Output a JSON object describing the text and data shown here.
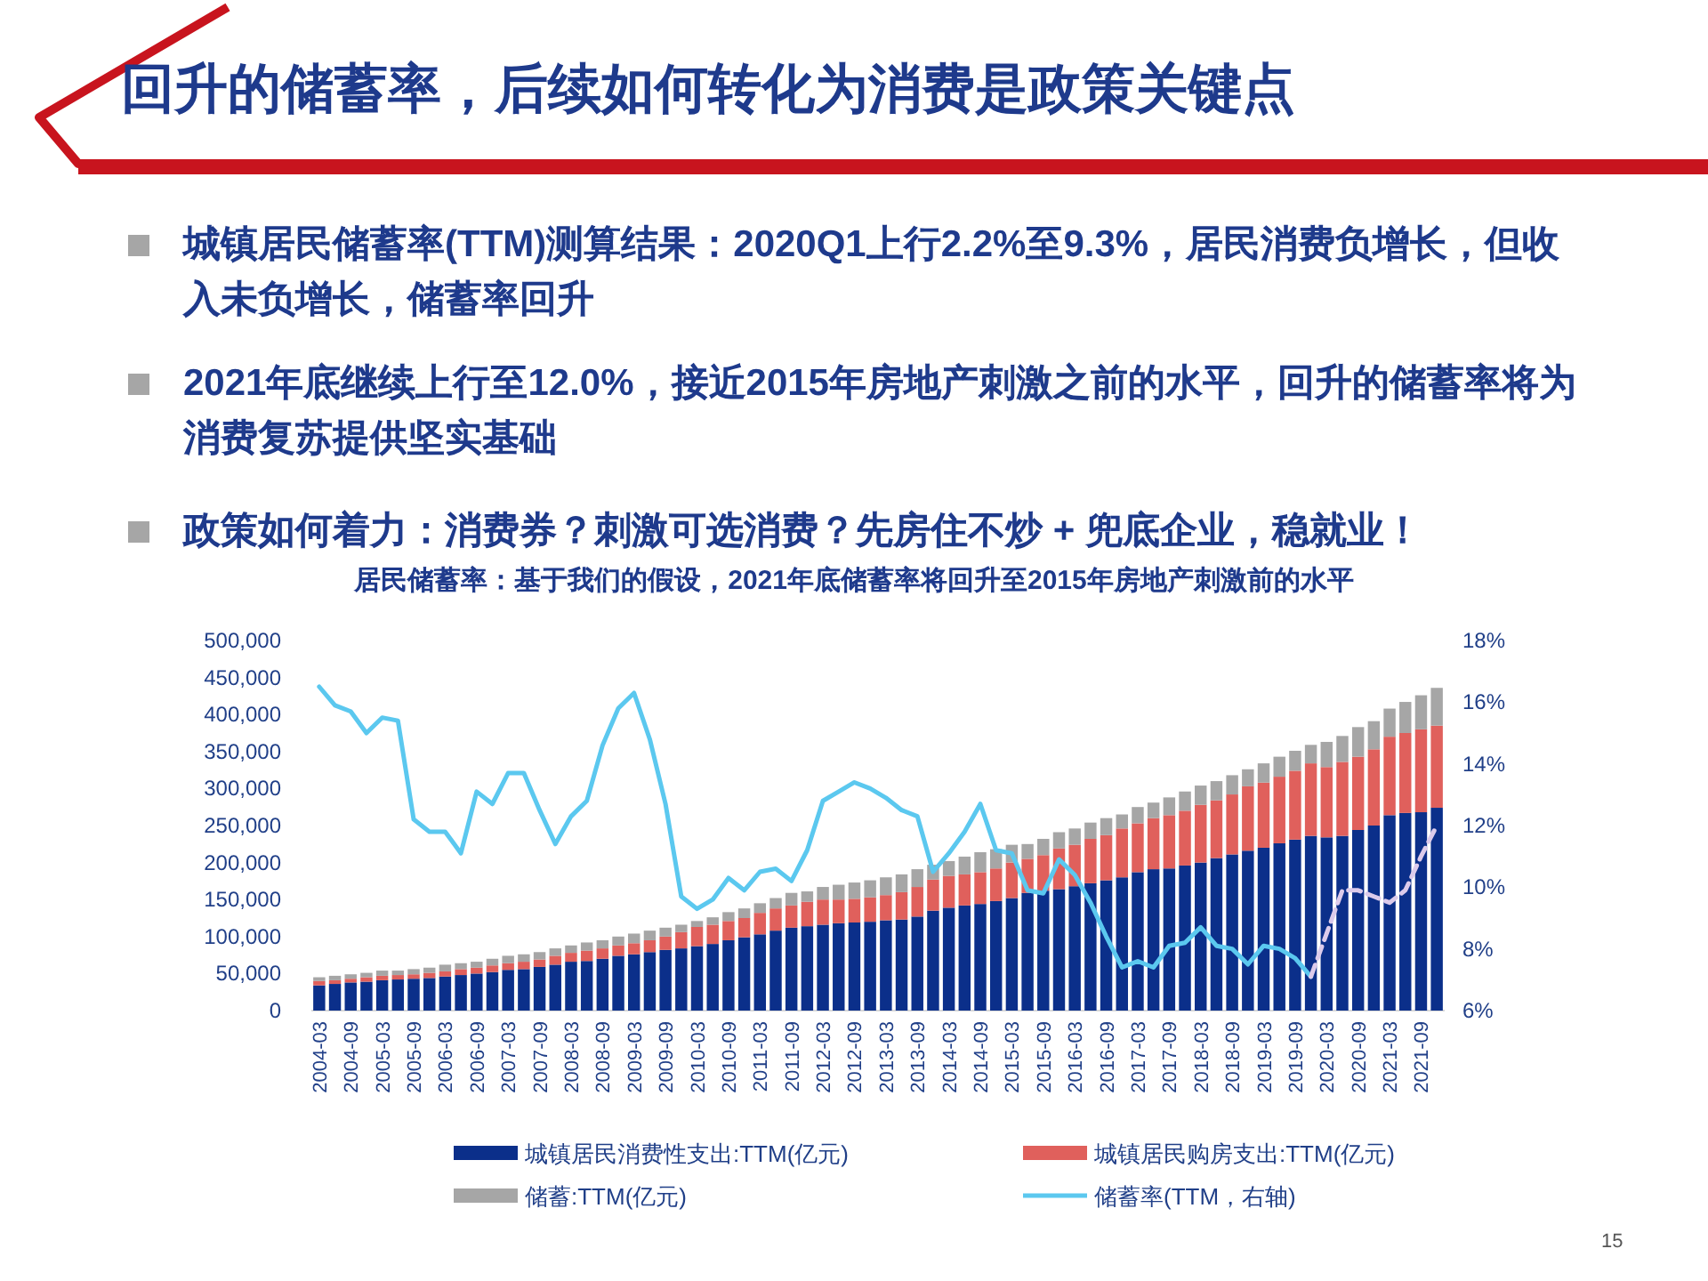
{
  "chart_data": {
    "type": "bar",
    "title": "回升的储蓄率，后续如何转化为消费是政策关键点",
    "subtitle": "居民储蓄率：基于我们的假设，2021年底储蓄率将回升至2015年房地产刺激前的水平",
    "annotations": [
      "城镇居民储蓄率(TTM)测算结果：2020Q1上行2.2%至9.3%，居民消费负增长，但收入未负增长，储蓄率回升",
      "2021年底继续上行至12.0%，接近2015年房地产刺激之前的水平，回升的储蓄率将为消费复苏提供坚实基础",
      "政策如何着力：消费券？刺激可选消费？先房住不炒 + 兜底企业，稳就业！",
      "15"
    ],
    "categories": [
      "2004-03",
      null,
      "2004-09",
      null,
      "2005-03",
      null,
      "2005-09",
      null,
      "2006-03",
      null,
      "2006-09",
      null,
      "2007-03",
      null,
      "2007-09",
      null,
      "2008-03",
      null,
      "2008-09",
      null,
      "2009-03",
      null,
      "2009-09",
      null,
      "2010-03",
      null,
      "2010-09",
      null,
      "2011-03",
      null,
      "2011-09",
      null,
      "2012-03",
      null,
      "2012-09",
      null,
      "2013-03",
      null,
      "2013-09",
      null,
      "2014-03",
      null,
      "2014-09",
      null,
      "2015-03",
      null,
      "2015-09",
      null,
      "2016-03",
      null,
      "2016-09",
      null,
      "2017-03",
      null,
      "2017-09",
      null,
      "2018-03",
      null,
      "2018-09",
      null,
      "2019-03",
      null,
      "2019-09",
      null,
      "2020-03",
      null,
      "2020-09",
      null,
      "2021-03",
      null,
      "2021-09",
      null
    ],
    "stacked": true,
    "series": [
      {
        "name": "城镇居民消费性支出:TTM(亿元)",
        "color": "#0b2f8a",
        "values": [
          34000,
          36000,
          38000,
          39000,
          41000,
          42000,
          43000,
          44000,
          46000,
          48000,
          50000,
          52000,
          55000,
          56000,
          59000,
          62000,
          66000,
          67000,
          70000,
          74000,
          76000,
          79000,
          82000,
          84000,
          87000,
          90000,
          95000,
          99000,
          103000,
          108000,
          112000,
          114000,
          116000,
          118000,
          119000,
          120000,
          122000,
          123000,
          127000,
          135000,
          139000,
          142000,
          144000,
          148000,
          152000,
          159000,
          162000,
          164000,
          168000,
          172000,
          176000,
          180000,
          187000,
          191000,
          192000,
          196000,
          200000,
          206000,
          211000,
          216000,
          220000,
          226000,
          231000,
          236000,
          234000,
          236000,
          244000,
          250000,
          264000,
          267000,
          268000,
          274000
        ]
      },
      {
        "name": "城镇居民购房支出:TTM(亿元)",
        "color": "#e0605c",
        "values": [
          6000,
          5000,
          5000,
          6000,
          6000,
          6000,
          6000,
          7000,
          7000,
          8000,
          8000,
          9000,
          9000,
          10000,
          10000,
          12000,
          12000,
          14000,
          14000,
          14000,
          15000,
          16000,
          18000,
          22000,
          26000,
          26000,
          26000,
          26000,
          29000,
          30000,
          30000,
          33000,
          34000,
          32000,
          32000,
          33000,
          34000,
          37000,
          40000,
          42000,
          43000,
          42000,
          43000,
          44000,
          48000,
          46000,
          48000,
          55000,
          56000,
          60000,
          61000,
          66000,
          66000,
          69000,
          72000,
          74000,
          78000,
          78000,
          81000,
          87000,
          88000,
          90000,
          93000,
          98000,
          95000,
          100000,
          99000,
          103000,
          106000,
          108000,
          112000,
          111000
        ]
      },
      {
        "name": "储蓄:TTM(亿元)",
        "color": "#a6a6a6",
        "values": [
          5000,
          6000,
          6000,
          6000,
          7000,
          6000,
          7000,
          7000,
          9000,
          8000,
          8000,
          9000,
          10000,
          10000,
          10000,
          10000,
          10000,
          11000,
          11000,
          12000,
          13000,
          13000,
          12000,
          10000,
          8000,
          10000,
          12000,
          13000,
          13000,
          14000,
          17000,
          14000,
          17000,
          20000,
          22000,
          23000,
          24000,
          24000,
          24000,
          20000,
          20000,
          24000,
          27000,
          26000,
          24000,
          20000,
          22000,
          22000,
          22000,
          22000,
          23000,
          19000,
          22000,
          21000,
          24000,
          26000,
          26000,
          26000,
          26000,
          23000,
          26000,
          27000,
          27000,
          25000,
          34000,
          35000,
          40000,
          38000,
          38000,
          42000,
          46000,
          51000
        ]
      },
      {
        "name": "储蓄率(TTM，右轴)",
        "type": "line",
        "axis": "y2",
        "color": "#5bc8ef",
        "line_style": "solid",
        "values": [
          16.5,
          15.9,
          15.7,
          15.0,
          15.5,
          15.4,
          12.2,
          11.8,
          11.8,
          11.1,
          13.1,
          12.7,
          13.7,
          13.7,
          12.5,
          11.4,
          12.3,
          12.8,
          14.6,
          15.8,
          16.3,
          14.8,
          12.7,
          9.7,
          9.3,
          9.6,
          10.3,
          9.9,
          10.5,
          10.6,
          10.2,
          11.2,
          12.8,
          13.1,
          13.4,
          13.2,
          12.9,
          12.5,
          12.3,
          10.5,
          11.1,
          11.8,
          12.7,
          11.2,
          11.1,
          9.9,
          9.8,
          10.9,
          10.4,
          9.5,
          8.4,
          7.4,
          7.6,
          7.4,
          8.1,
          8.2,
          8.7,
          8.1,
          8.0,
          7.5,
          8.1,
          8.0,
          7.7,
          7.1,
          null,
          null,
          null,
          null,
          null,
          null,
          null,
          null
        ]
      },
      {
        "type": "line",
        "axis": "y2",
        "color": "#dccbeb",
        "line_style": "dashed",
        "values": [
          null,
          null,
          null,
          null,
          null,
          null,
          null,
          null,
          null,
          null,
          null,
          null,
          null,
          null,
          null,
          null,
          null,
          null,
          null,
          null,
          null,
          null,
          null,
          null,
          null,
          null,
          null,
          null,
          null,
          null,
          null,
          null,
          null,
          null,
          null,
          null,
          null,
          null,
          null,
          null,
          null,
          null,
          null,
          null,
          null,
          null,
          null,
          null,
          null,
          null,
          null,
          null,
          null,
          null,
          null,
          null,
          null,
          null,
          null,
          null,
          null,
          null,
          null,
          7.1,
          8.5,
          9.9,
          9.9,
          9.7,
          9.5,
          9.9,
          11.0,
          12.0
        ]
      }
    ],
    "ylim": [
      0,
      500000
    ],
    "yticks": [
      {
        "value": 0,
        "label": "0"
      },
      {
        "value": 50000,
        "label": "50,000"
      },
      {
        "value": 100000,
        "label": "100,000"
      },
      {
        "value": 150000,
        "label": "150,000"
      },
      {
        "value": 200000,
        "label": "200,000"
      },
      {
        "value": 250000,
        "label": "250,000"
      },
      {
        "value": 300000,
        "label": "300,000"
      },
      {
        "value": 350000,
        "label": "350,000"
      },
      {
        "value": 400000,
        "label": "400,000"
      },
      {
        "value": 450000,
        "label": "450,000"
      },
      {
        "value": 500000,
        "label": "500,000"
      }
    ],
    "y2lim": [
      6,
      18
    ],
    "y2ticks": [
      {
        "value": 6,
        "label": "6%"
      },
      {
        "value": 8,
        "label": "8%"
      },
      {
        "value": 10,
        "label": "10%"
      },
      {
        "value": 12,
        "label": "12%"
      },
      {
        "value": 14,
        "label": "14%"
      },
      {
        "value": 16,
        "label": "16%"
      },
      {
        "value": 18,
        "label": "18%"
      }
    ],
    "legend": "bottom"
  }
}
